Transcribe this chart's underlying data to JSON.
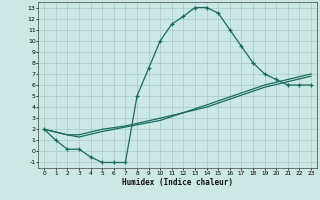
{
  "xlabel": "Humidex (Indice chaleur)",
  "bg_color": "#cce8e4",
  "grid_color": "#aacfca",
  "line_color": "#1a6b60",
  "xlim": [
    -0.5,
    23.5
  ],
  "ylim": [
    -1.5,
    13.5
  ],
  "xticks": [
    0,
    1,
    2,
    3,
    4,
    5,
    6,
    7,
    8,
    9,
    10,
    11,
    12,
    13,
    14,
    15,
    16,
    17,
    18,
    19,
    20,
    21,
    22,
    23
  ],
  "yticks": [
    -1,
    0,
    1,
    2,
    3,
    4,
    5,
    6,
    7,
    8,
    9,
    10,
    11,
    12,
    13
  ],
  "curve1_x": [
    0,
    1,
    2,
    3,
    4,
    5,
    6,
    7,
    8,
    9,
    10,
    11,
    12,
    13,
    14,
    15,
    16,
    17,
    18,
    19,
    20,
    21,
    22,
    23
  ],
  "curve1_y": [
    2.0,
    1.0,
    0.2,
    0.2,
    -0.5,
    -1.0,
    -1.0,
    -1.0,
    5.0,
    7.5,
    10.0,
    11.5,
    12.2,
    13.0,
    13.0,
    12.5,
    11.0,
    9.5,
    8.0,
    7.0,
    6.5,
    6.0,
    6.0,
    6.0
  ],
  "curve2_x": [
    0,
    2,
    3,
    5,
    7,
    10,
    14,
    19,
    23
  ],
  "curve2_y": [
    2.0,
    1.5,
    1.5,
    2.0,
    2.3,
    3.0,
    4.0,
    5.8,
    6.8
  ],
  "curve3_x": [
    0,
    2,
    3,
    5,
    7,
    10,
    14,
    19,
    23
  ],
  "curve3_y": [
    2.0,
    1.5,
    1.3,
    1.8,
    2.2,
    2.8,
    4.2,
    6.0,
    7.0
  ]
}
